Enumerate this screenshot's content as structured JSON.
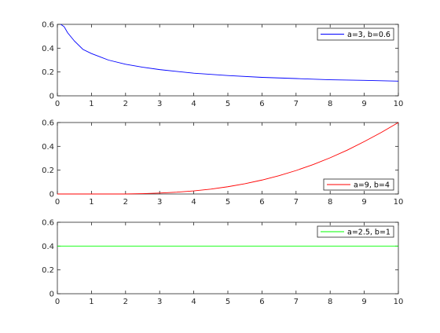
{
  "chart_data": [
    {
      "type": "line",
      "x": [
        0.1,
        0.2,
        0.3,
        0.5,
        0.75,
        1,
        1.5,
        2,
        2.5,
        3,
        3.5,
        4,
        5,
        6,
        7,
        8,
        9,
        10
      ],
      "series": [
        {
          "name": "a=3, b=0.6",
          "color": "#0000ff",
          "values": [
            0.6,
            0.58,
            0.53,
            0.46,
            0.39,
            0.355,
            0.3,
            0.265,
            0.24,
            0.22,
            0.205,
            0.19,
            0.17,
            0.155,
            0.145,
            0.135,
            0.13,
            0.123
          ]
        }
      ],
      "xlim": [
        0,
        10
      ],
      "ylim": [
        0,
        0.6
      ],
      "xticks": [
        "0",
        "1",
        "2",
        "3",
        "4",
        "5",
        "6",
        "7",
        "8",
        "9",
        "10"
      ],
      "yticks": [
        "0",
        "0.2",
        "0.4",
        "0.6"
      ],
      "legend": "top-right",
      "grid": false
    },
    {
      "type": "line",
      "x": [
        0,
        1,
        2,
        2.5,
        3,
        3.5,
        4,
        4.5,
        5,
        5.5,
        6,
        6.5,
        7,
        7.5,
        8,
        8.5,
        9,
        9.5,
        10
      ],
      "series": [
        {
          "name": "a=9, b=4",
          "color": "#ff0000",
          "values": [
            0,
            0,
            0,
            0.003,
            0.008,
            0.015,
            0.026,
            0.041,
            0.061,
            0.086,
            0.117,
            0.154,
            0.197,
            0.247,
            0.304,
            0.368,
            0.44,
            0.517,
            0.6
          ]
        }
      ],
      "xlim": [
        0,
        10
      ],
      "ylim": [
        0,
        0.6
      ],
      "xticks": [
        "0",
        "1",
        "2",
        "3",
        "4",
        "5",
        "6",
        "7",
        "8",
        "9",
        "10"
      ],
      "yticks": [
        "0",
        "0.2",
        "0.4",
        "0.6"
      ],
      "legend": "bottom-right",
      "grid": false
    },
    {
      "type": "line",
      "x": [
        0,
        10
      ],
      "series": [
        {
          "name": "a=2.5, b=1",
          "color": "#00ff00",
          "values": [
            0.4,
            0.4
          ]
        }
      ],
      "xlim": [
        0,
        10
      ],
      "ylim": [
        0,
        0.6
      ],
      "xticks": [
        "0",
        "1",
        "2",
        "3",
        "4",
        "5",
        "6",
        "7",
        "8",
        "9",
        "10"
      ],
      "yticks": [
        "0",
        "0.2",
        "0.4",
        "0.6"
      ],
      "legend": "top-right",
      "grid": false
    }
  ]
}
